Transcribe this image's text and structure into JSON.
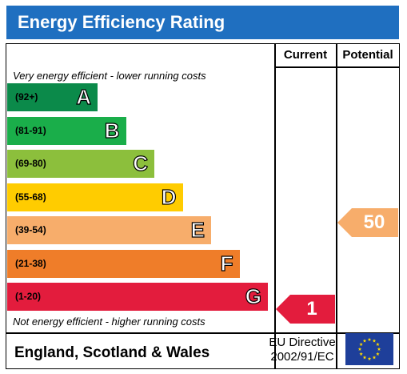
{
  "title": "Energy Efficiency Rating",
  "columns": {
    "current": "Current",
    "potential": "Potential"
  },
  "top_note": "Very energy efficient - lower running costs",
  "bottom_note": "Not energy efficient - higher running costs",
  "bands": [
    {
      "range": "(92+)",
      "letter": "A",
      "color": "#0b8a4a"
    },
    {
      "range": "(81-91)",
      "letter": "B",
      "color": "#1aae4a"
    },
    {
      "range": "(69-80)",
      "letter": "C",
      "color": "#8cbf3c"
    },
    {
      "range": "(55-68)",
      "letter": "D",
      "color": "#ffcc00"
    },
    {
      "range": "(39-54)",
      "letter": "E",
      "color": "#f7ad6b"
    },
    {
      "range": "(21-38)",
      "letter": "F",
      "color": "#ef7d29"
    },
    {
      "range": "(1-20)",
      "letter": "G",
      "color": "#e31c3d"
    }
  ],
  "current_rating": {
    "value": "1",
    "band": "G",
    "color": "#e31c3d"
  },
  "potential_rating": {
    "value": "50",
    "band": "E",
    "color": "#f7ad6b"
  },
  "footer": {
    "region": "England, Scotland & Wales",
    "directive_line1": "EU Directive",
    "directive_line2": "2002/91/EC"
  }
}
